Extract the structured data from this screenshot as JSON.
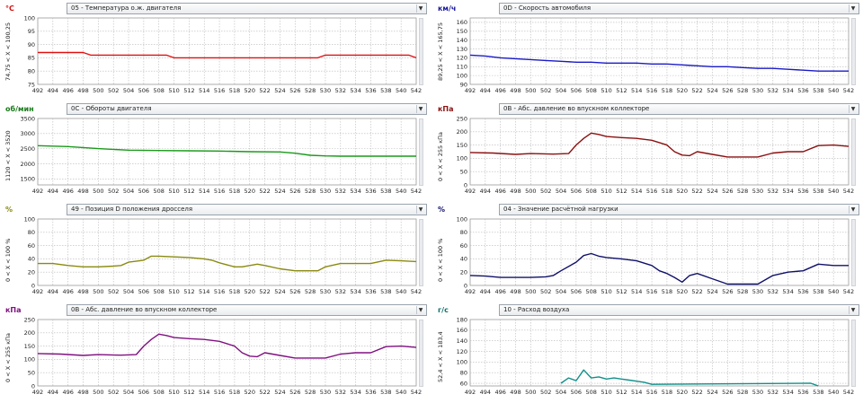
{
  "x_ticks": [
    "492",
    "494",
    "496",
    "498",
    "500",
    "502",
    "504",
    "506",
    "508",
    "510",
    "512",
    "514",
    "516",
    "518",
    "520",
    "522",
    "524",
    "526",
    "528",
    "530",
    "532",
    "534",
    "536",
    "538",
    "540",
    "542"
  ],
  "select_arrow": "▼",
  "chart_data": [
    {
      "type": "line",
      "unit": "°C",
      "color": "#e01010",
      "unit_color": "#d01010",
      "selector": "05 - Температура о.ж. двигателя",
      "range_label": "74,75  < X <  100,25",
      "ylim": [
        75,
        100
      ],
      "y_ticks": [
        "100",
        "95",
        "90",
        "85",
        "80",
        "75"
      ],
      "xlim": [
        492,
        542
      ],
      "x": [
        492,
        498,
        499,
        509,
        510,
        529,
        530,
        541,
        542
      ],
      "y": [
        87,
        87,
        86,
        86,
        85,
        85,
        86,
        86,
        85
      ]
    },
    {
      "type": "line",
      "unit": "км/ч",
      "color": "#1a1ac8",
      "unit_color": "#1a1a9a",
      "selector": "0D - Скорость автомобиля",
      "range_label": "89,25  < X <  165,75",
      "ylim": [
        90,
        165
      ],
      "y_ticks": [
        "160",
        "150",
        "140",
        "130",
        "120",
        "110",
        "100",
        "90"
      ],
      "xlim": [
        492,
        542
      ],
      "x": [
        492,
        494,
        496,
        498,
        500,
        502,
        504,
        506,
        508,
        510,
        512,
        514,
        516,
        518,
        520,
        522,
        524,
        526,
        528,
        530,
        532,
        534,
        536,
        538,
        540,
        542
      ],
      "y": [
        123,
        122,
        120,
        119,
        118,
        117,
        116,
        115,
        115,
        114,
        114,
        114,
        113,
        113,
        112,
        111,
        110,
        110,
        109,
        108,
        108,
        107,
        106,
        105,
        105,
        105
      ]
    },
    {
      "type": "line",
      "unit": "об/мин",
      "color": "#1a9a1a",
      "unit_color": "#1a7a1a",
      "selector": "0C - Обороты двигателя",
      "range_label": "1120  < X <  3520",
      "ylim": [
        1300,
        3500
      ],
      "y_ticks": [
        "3500",
        "3000",
        "2500",
        "2000",
        "1500"
      ],
      "xlim": [
        492,
        542
      ],
      "x": [
        492,
        496,
        500,
        504,
        508,
        512,
        516,
        520,
        524,
        526,
        528,
        530,
        532,
        536,
        540,
        542
      ],
      "y": [
        2600,
        2570,
        2500,
        2450,
        2440,
        2430,
        2420,
        2400,
        2390,
        2350,
        2280,
        2260,
        2250,
        2250,
        2250,
        2250
      ]
    },
    {
      "type": "line",
      "unit": "кПа",
      "color": "#8a1010",
      "unit_color": "#8a1010",
      "selector": "0B - Абс. давление во впускном коллекторе",
      "range_label": "0  < X <  255 кПа",
      "ylim": [
        0,
        250
      ],
      "y_ticks": [
        "250",
        "200",
        "150",
        "100",
        "50",
        "0"
      ],
      "xlim": [
        492,
        542
      ],
      "x": [
        492,
        495,
        498,
        500,
        503,
        505,
        506,
        507,
        508,
        509,
        510,
        512,
        514,
        516,
        518,
        519,
        520,
        521,
        522,
        523,
        524,
        526,
        530,
        532,
        534,
        536,
        538,
        540,
        542
      ],
      "y": [
        122,
        120,
        115,
        118,
        116,
        118,
        150,
        175,
        195,
        190,
        182,
        178,
        175,
        168,
        150,
        125,
        112,
        110,
        125,
        120,
        115,
        105,
        105,
        120,
        125,
        125,
        148,
        150,
        145
      ]
    },
    {
      "type": "line",
      "unit": "%",
      "color": "#8a8a10",
      "unit_color": "#8a8a10",
      "selector": "49 - Позиция D положения дросселя",
      "range_label": "0  < X <  100 %",
      "ylim": [
        0,
        100
      ],
      "y_ticks": [
        "100",
        "80",
        "60",
        "40",
        "20",
        "0"
      ],
      "xlim": [
        492,
        542
      ],
      "x": [
        492,
        494,
        496,
        498,
        500,
        502,
        503,
        504,
        506,
        507,
        508,
        510,
        512,
        514,
        515,
        516,
        518,
        519,
        520,
        521,
        522,
        524,
        526,
        528,
        529,
        530,
        532,
        534,
        536,
        538,
        540,
        542
      ],
      "y": [
        33,
        33,
        30,
        28,
        28,
        29,
        30,
        35,
        38,
        44,
        44,
        43,
        42,
        40,
        38,
        34,
        28,
        28,
        30,
        32,
        30,
        25,
        22,
        22,
        22,
        28,
        33,
        33,
        33,
        38,
        37,
        36
      ]
    },
    {
      "type": "line",
      "unit": "%",
      "color": "#10106a",
      "unit_color": "#10106a",
      "selector": "04 - Значение расчётной нагрузки",
      "range_label": "0  < X <  100 %",
      "ylim": [
        0,
        100
      ],
      "y_ticks": [
        "100",
        "80",
        "60",
        "40",
        "20",
        "0"
      ],
      "xlim": [
        492,
        542
      ],
      "x": [
        492,
        494,
        496,
        498,
        500,
        502,
        503,
        504,
        506,
        507,
        508,
        509,
        510,
        512,
        514,
        516,
        517,
        518,
        519,
        520,
        521,
        522,
        524,
        526,
        528,
        530,
        532,
        534,
        536,
        538,
        540,
        542
      ],
      "y": [
        15,
        14,
        12,
        12,
        12,
        13,
        15,
        22,
        35,
        45,
        48,
        44,
        42,
        40,
        37,
        30,
        22,
        18,
        12,
        5,
        15,
        18,
        10,
        2,
        2,
        2,
        15,
        20,
        22,
        32,
        30,
        30
      ]
    },
    {
      "type": "line",
      "unit": "кПа",
      "color": "#801080",
      "unit_color": "#801080",
      "selector": "0B - Абс. давление во впускном коллекторе",
      "range_label": "0  < X <  255 кПа",
      "ylim": [
        0,
        250
      ],
      "y_ticks": [
        "250",
        "200",
        "150",
        "100",
        "50",
        "0"
      ],
      "xlim": [
        492,
        542
      ],
      "x": [
        492,
        495,
        498,
        500,
        503,
        505,
        506,
        507,
        508,
        509,
        510,
        512,
        514,
        516,
        518,
        519,
        520,
        521,
        522,
        523,
        524,
        526,
        530,
        532,
        534,
        536,
        538,
        540,
        542
      ],
      "y": [
        122,
        120,
        115,
        118,
        116,
        118,
        150,
        175,
        195,
        190,
        182,
        178,
        175,
        168,
        150,
        125,
        112,
        110,
        125,
        120,
        115,
        105,
        105,
        120,
        125,
        125,
        148,
        150,
        145
      ]
    },
    {
      "type": "line",
      "unit": "г/с",
      "color": "#10908a",
      "unit_color": "#10706a",
      "selector": "10 - Расход воздуха",
      "range_label": "52,4  < X <  183,4",
      "ylim": [
        55,
        180
      ],
      "y_ticks": [
        "180",
        "160",
        "140",
        "120",
        "100",
        "80",
        "60"
      ],
      "xlim": [
        492,
        542
      ],
      "x": [
        504,
        505,
        506,
        507,
        508,
        509,
        510,
        511,
        512,
        513,
        514,
        515,
        516,
        537,
        538
      ],
      "y": [
        60,
        70,
        65,
        85,
        70,
        72,
        68,
        70,
        68,
        66,
        64,
        62,
        58,
        60,
        55
      ]
    }
  ]
}
